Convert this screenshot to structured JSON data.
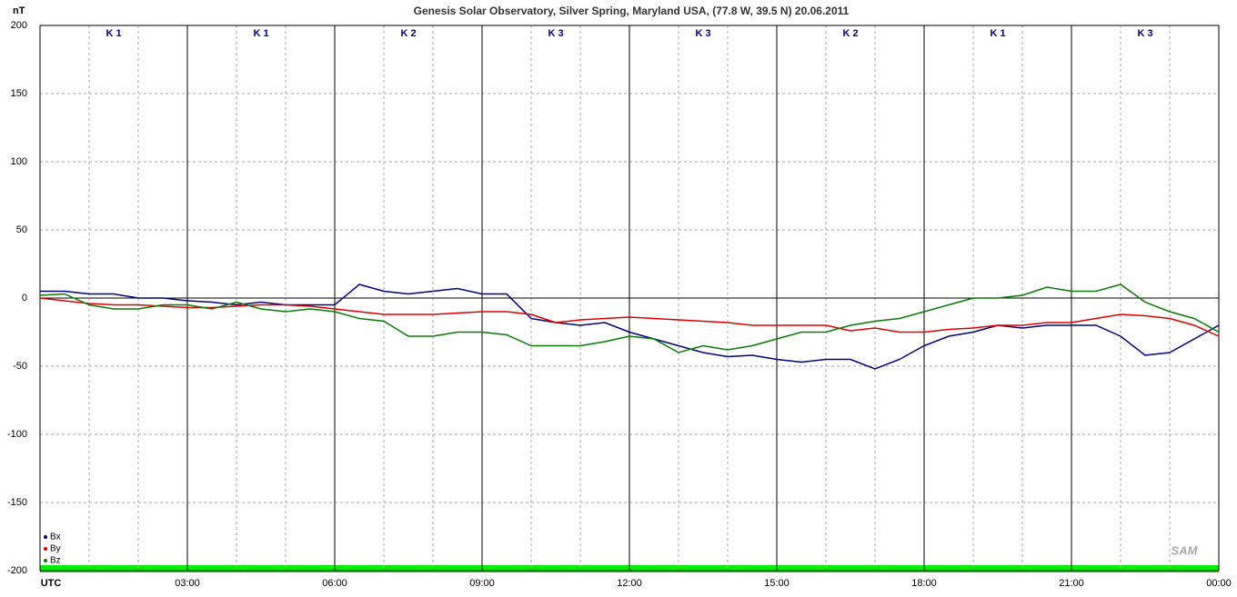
{
  "chart_data": {
    "type": "line",
    "title": "Genesis Solar Observatory, Silver Spring, Maryland USA, (77.8 W, 39.5 N)  20.06.2011",
    "y_label": "nT",
    "logo": "SAM",
    "k_indices": [
      "K 1",
      "K 1",
      "K 2",
      "K 3",
      "K 3",
      "K 2",
      "K 1",
      "K 3"
    ],
    "x": [
      0,
      0.5,
      1,
      1.5,
      2,
      2.5,
      3,
      3.5,
      4,
      4.5,
      5,
      5.5,
      6,
      6.5,
      7,
      7.5,
      8,
      8.5,
      9,
      9.5,
      10,
      10.5,
      11,
      11.5,
      12,
      12.5,
      13,
      13.5,
      14,
      14.5,
      15,
      15.5,
      16,
      16.5,
      17,
      17.5,
      18,
      18.5,
      19,
      19.5,
      20,
      20.5,
      21,
      21.5,
      22,
      22.5,
      23,
      23.5,
      24
    ],
    "series": [
      {
        "name": "Bx",
        "color": "#000080",
        "values": [
          5,
          5,
          3,
          3,
          0,
          0,
          -2,
          -3,
          -5,
          -3,
          -5,
          -5,
          -5,
          10,
          5,
          3,
          5,
          7,
          3,
          3,
          -15,
          -18,
          -20,
          -18,
          -25,
          -30,
          -35,
          -40,
          -43,
          -42,
          -45,
          -47,
          -45,
          -45,
          -52,
          -45,
          -35,
          -28,
          -25,
          -20,
          -22,
          -20,
          -20,
          -20,
          -28,
          -42,
          -40,
          -30,
          -20
        ]
      },
      {
        "name": "By",
        "color": "#e00000",
        "values": [
          0,
          -2,
          -4,
          -5,
          -5,
          -6,
          -7,
          -7,
          -6,
          -5,
          -5,
          -6,
          -8,
          -10,
          -12,
          -12,
          -12,
          -11,
          -10,
          -10,
          -12,
          -18,
          -16,
          -15,
          -14,
          -15,
          -16,
          -17,
          -18,
          -20,
          -20,
          -20,
          -20,
          -24,
          -22,
          -25,
          -25,
          -23,
          -22,
          -20,
          -20,
          -18,
          -18,
          -15,
          -12,
          -13,
          -15,
          -20,
          -28
        ]
      },
      {
        "name": "Bz",
        "color": "#0a7a0a",
        "values": [
          2,
          3,
          -5,
          -8,
          -8,
          -5,
          -5,
          -8,
          -3,
          -8,
          -10,
          -8,
          -10,
          -15,
          -17,
          -28,
          -28,
          -25,
          -25,
          -27,
          -35,
          -35,
          -35,
          -32,
          -28,
          -30,
          -40,
          -35,
          -38,
          -35,
          -30,
          -25,
          -25,
          -20,
          -17,
          -15,
          -10,
          -5,
          0,
          0,
          2,
          8,
          5,
          5,
          10,
          -3,
          -10,
          -15,
          -25
        ]
      }
    ],
    "xlim": [
      0,
      24
    ],
    "xticks": [
      {
        "value": 0,
        "label": "UTC"
      },
      {
        "value": 3,
        "label": "03:00"
      },
      {
        "value": 6,
        "label": "06:00"
      },
      {
        "value": 9,
        "label": "09:00"
      },
      {
        "value": 12,
        "label": "12:00"
      },
      {
        "value": 15,
        "label": "15:00"
      },
      {
        "value": 18,
        "label": "18:00"
      },
      {
        "value": 21,
        "label": "21:00"
      },
      {
        "value": 24,
        "label": "00:00"
      }
    ],
    "xminor": [
      1,
      2,
      4,
      5,
      7,
      8,
      10,
      11,
      13,
      14,
      16,
      17,
      19,
      20,
      22,
      23
    ],
    "ylim": [
      -200,
      200
    ],
    "yticks": [
      -200,
      -150,
      -100,
      -50,
      0,
      50,
      100,
      150,
      200
    ],
    "grid": true,
    "legend": "lower left"
  }
}
